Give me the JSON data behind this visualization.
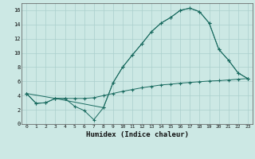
{
  "xlabel": "Humidex (Indice chaleur)",
  "xlim": [
    -0.5,
    23.5
  ],
  "ylim": [
    0,
    17
  ],
  "xticks": [
    0,
    1,
    2,
    3,
    4,
    5,
    6,
    7,
    8,
    9,
    10,
    11,
    12,
    13,
    14,
    15,
    16,
    17,
    18,
    19,
    20,
    21,
    22,
    23
  ],
  "yticks": [
    0,
    2,
    4,
    6,
    8,
    10,
    12,
    14,
    16
  ],
  "background_color": "#cce8e4",
  "grid_color": "#aacfcc",
  "line_color": "#1a6b60",
  "line1_x": [
    0,
    1,
    2,
    3,
    4,
    5,
    6,
    7,
    8,
    9,
    10,
    11,
    12,
    13,
    14,
    15,
    16,
    17,
    18,
    19,
    20,
    21,
    22,
    23
  ],
  "line1_y": [
    4.3,
    2.9,
    3.0,
    3.6,
    3.6,
    2.5,
    1.9,
    0.6,
    2.3,
    5.8,
    8.0,
    9.7,
    11.3,
    13.0,
    14.2,
    15.0,
    16.0,
    16.3,
    15.8,
    14.2,
    10.5,
    9.0,
    7.2,
    6.4
  ],
  "line2_x": [
    0,
    3,
    8,
    9,
    10,
    11,
    12,
    13,
    14,
    15,
    16,
    17,
    18,
    19,
    20,
    21,
    22,
    23
  ],
  "line2_y": [
    4.3,
    3.6,
    2.3,
    5.8,
    8.0,
    9.7,
    11.3,
    13.0,
    14.2,
    15.0,
    16.0,
    16.3,
    15.8,
    14.2,
    10.5,
    9.0,
    7.2,
    6.4
  ],
  "line3_x": [
    0,
    1,
    2,
    3,
    4,
    5,
    6,
    7,
    8,
    9,
    10,
    11,
    12,
    13,
    14,
    15,
    16,
    17,
    18,
    19,
    20,
    21,
    22,
    23
  ],
  "line3_y": [
    4.3,
    2.9,
    3.0,
    3.6,
    3.6,
    3.6,
    3.6,
    3.7,
    4.0,
    4.3,
    4.6,
    4.85,
    5.1,
    5.3,
    5.5,
    5.6,
    5.75,
    5.85,
    5.95,
    6.05,
    6.1,
    6.2,
    6.3,
    6.4
  ]
}
